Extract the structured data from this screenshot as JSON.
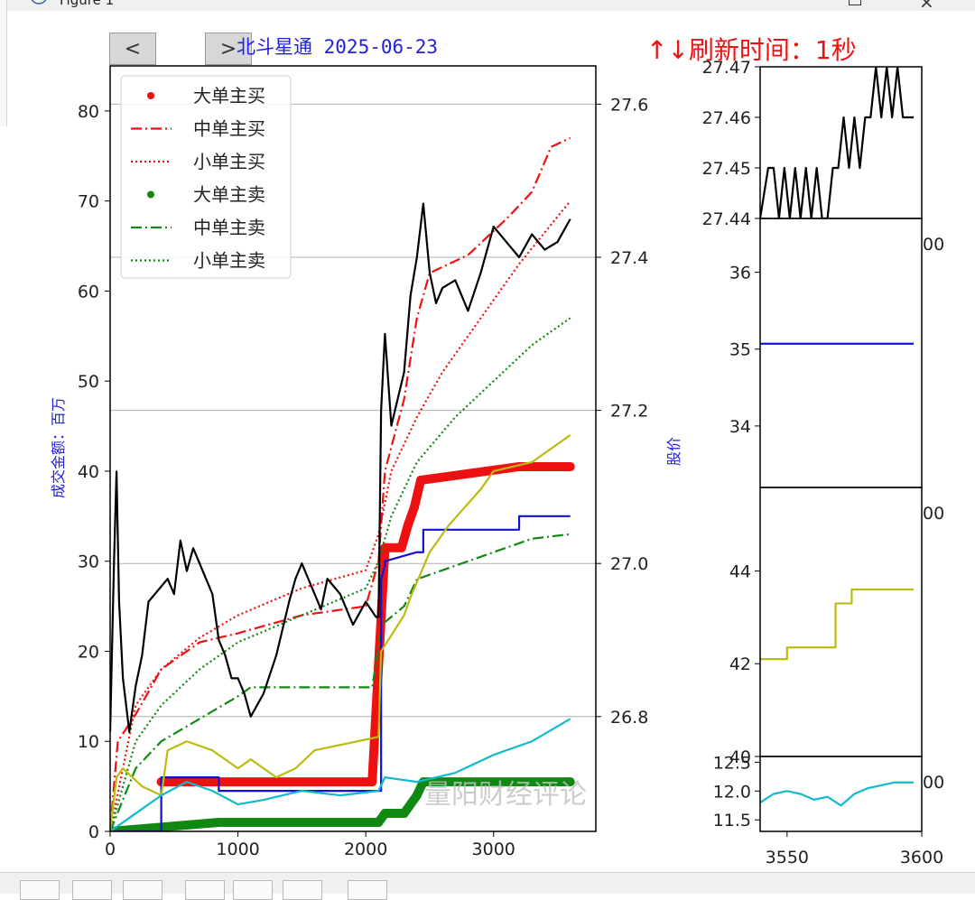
{
  "window": {
    "title": "Figure 1"
  },
  "nav": {
    "prev_label": "<",
    "next_label": ">"
  },
  "header": {
    "title": "北斗星通 2025-06-23",
    "refresh": "↑↓刷新时间：1秒"
  },
  "watermark": "量阳财经评论",
  "colors": {
    "buy": "#ee1111",
    "sell": "#118811",
    "price": "#000000",
    "blue": "#1111dd",
    "olive": "#bbbb11",
    "cyan": "#11bbcc",
    "title": "#2020e0"
  },
  "chart_data": [
    {
      "type": "line",
      "title": "北斗星通 2025-06-23",
      "xlabel": "",
      "ylabel": "成交金额：百万",
      "y2label": "股价",
      "xlim": [
        0,
        3800
      ],
      "ylim": [
        0,
        85
      ],
      "y2lim": [
        26.65,
        27.65
      ],
      "xticks": [
        0,
        1000,
        2000,
        3000
      ],
      "yticks": [
        0,
        10,
        20,
        30,
        40,
        50,
        60,
        70,
        80
      ],
      "y2ticks": [
        26.8,
        27.0,
        27.2,
        27.4,
        27.6
      ],
      "y2ticklabels": [
        "26.8",
        "27.0",
        "27.2",
        "27.4",
        "27.6"
      ],
      "grid": "horizontal on right axis",
      "legend_position": "upper-left",
      "series": [
        {
          "name": "大单主买",
          "style": "dots",
          "color": "#ee1111",
          "x": [
            400,
            1000,
            2050,
            2150,
            2280,
            2330,
            2380,
            2430,
            3200,
            3600
          ],
          "y": [
            5.5,
            5.5,
            5.5,
            31.5,
            31.5,
            34,
            36,
            39,
            40.5,
            40.5
          ]
        },
        {
          "name": "中单主买",
          "style": "dashdot",
          "color": "#ee1111",
          "x": [
            0,
            60,
            200,
            400,
            700,
            1000,
            1500,
            2000,
            2100,
            2150,
            2300,
            2400,
            2500,
            2800,
            3100,
            3300,
            3450,
            3600
          ],
          "y": [
            0,
            10,
            13,
            18,
            21,
            22,
            24,
            25,
            30,
            40,
            48,
            57,
            62,
            64,
            68,
            71,
            76,
            77
          ]
        },
        {
          "name": "小单主买",
          "style": "dotted",
          "color": "#ee1111",
          "x": [
            0,
            200,
            400,
            700,
            1000,
            1500,
            2000,
            2100,
            2200,
            2400,
            2600,
            2900,
            3200,
            3600
          ],
          "y": [
            0,
            14,
            18,
            21.5,
            24,
            27,
            29,
            33,
            40,
            46,
            51,
            57,
            63,
            70
          ]
        },
        {
          "name": "大单主卖",
          "style": "dots",
          "color": "#118811",
          "x": [
            0,
            850,
            2100,
            2150,
            2300,
            2400,
            2450,
            3600
          ],
          "y": [
            0,
            1,
            1,
            2,
            2,
            4,
            5.5,
            5.5
          ]
        },
        {
          "name": "中单主卖",
          "style": "dashdot",
          "color": "#118811",
          "x": [
            0,
            200,
            400,
            700,
            1000,
            1100,
            1600,
            2050,
            2130,
            2300,
            2400,
            2600,
            3000,
            3300,
            3600
          ],
          "y": [
            0,
            7,
            10,
            12.5,
            15,
            16,
            16,
            16,
            23,
            25,
            28,
            29,
            31,
            32.5,
            33
          ]
        },
        {
          "name": "小单主卖",
          "style": "dotted",
          "color": "#118811",
          "x": [
            0,
            200,
            400,
            700,
            1000,
            1500,
            2000,
            2100,
            2200,
            2400,
            2700,
            3000,
            3300,
            3600
          ],
          "y": [
            0,
            10,
            14,
            18,
            21,
            24,
            27,
            30,
            35,
            41,
            46,
            50,
            54,
            57
          ]
        },
        {
          "name": "",
          "style": "step",
          "color": "#1111dd",
          "x": [
            0,
            400,
            400,
            850,
            850,
            2120,
            2120,
            2150,
            2150,
            2400,
            2450,
            2450,
            3200,
            3200,
            3600
          ],
          "y": [
            0,
            0,
            6,
            6,
            4.5,
            4.5,
            28,
            29.5,
            30,
            31,
            31,
            33.5,
            33.5,
            35,
            35
          ]
        },
        {
          "name": "",
          "style": "line",
          "color": "#bbbb11",
          "x": [
            0,
            50,
            100,
            250,
            400,
            450,
            600,
            800,
            1000,
            1100,
            1300,
            1450,
            1600,
            2100,
            2120,
            2300,
            2350,
            2500,
            2650,
            2900,
            3000,
            3300,
            3600
          ],
          "y": [
            0,
            6,
            7,
            5,
            4,
            9,
            10,
            9,
            7,
            8,
            6,
            7,
            9,
            10.5,
            20,
            24,
            26,
            31,
            34,
            38,
            40,
            41,
            44
          ]
        },
        {
          "name": "",
          "style": "line",
          "color": "#11bbcc",
          "x": [
            0,
            200,
            400,
            600,
            800,
            1000,
            1200,
            1500,
            1800,
            2100,
            2150,
            2400,
            2700,
            3000,
            3300,
            3600
          ],
          "y": [
            0,
            2,
            4,
            5.5,
            4.5,
            3,
            3.5,
            4.5,
            4,
            4.5,
            6,
            5.5,
            6.5,
            8.5,
            10,
            12.5
          ]
        },
        {
          "name": "",
          "style": "line",
          "axis": "y2",
          "color": "#000000",
          "x": [
            0,
            30,
            50,
            70,
            100,
            150,
            200,
            250,
            300,
            400,
            450,
            500,
            550,
            600,
            650,
            700,
            800,
            850,
            900,
            950,
            1000,
            1050,
            1100,
            1200,
            1300,
            1400,
            1450,
            1500,
            1600,
            1650,
            1700,
            1800,
            1900,
            2000,
            2080,
            2100,
            2120,
            2150,
            2200,
            2300,
            2350,
            2400,
            2450,
            2500,
            2550,
            2600,
            2700,
            2800,
            2900,
            3000,
            3100,
            3200,
            3300,
            3400,
            3500,
            3600
          ],
          "y": [
            26.78,
            27.0,
            27.12,
            26.95,
            26.85,
            26.78,
            26.84,
            26.88,
            26.95,
            26.97,
            26.98,
            26.96,
            27.03,
            26.99,
            27.02,
            27.0,
            26.96,
            26.9,
            26.88,
            26.85,
            26.85,
            26.83,
            26.8,
            26.83,
            26.88,
            26.95,
            26.98,
            27.0,
            26.96,
            26.94,
            26.98,
            26.96,
            26.92,
            26.95,
            26.93,
            26.93,
            27.2,
            27.3,
            27.18,
            27.25,
            27.35,
            27.4,
            27.47,
            27.38,
            27.34,
            27.36,
            27.37,
            27.33,
            27.38,
            27.44,
            27.42,
            27.4,
            27.43,
            27.41,
            27.42,
            27.45
          ]
        }
      ]
    },
    {
      "type": "line",
      "ylim": [
        27.44,
        27.47
      ],
      "yticks": [
        27.44,
        27.45,
        27.46,
        27.47
      ],
      "yticklabels": [
        "27.44",
        "27.45",
        "27.46",
        "27.47"
      ],
      "x": [
        3540,
        3543,
        3545,
        3547,
        3549,
        3551,
        3553,
        3555,
        3557,
        3559,
        3561,
        3563,
        3565,
        3567,
        3569,
        3571,
        3573,
        3575,
        3577,
        3579,
        3581,
        3583,
        3585,
        3587,
        3589,
        3591,
        3593,
        3595,
        3597
      ],
      "y": [
        27.44,
        27.45,
        27.45,
        27.44,
        27.45,
        27.44,
        27.45,
        27.44,
        27.45,
        27.44,
        27.45,
        27.44,
        27.44,
        27.45,
        27.45,
        27.46,
        27.45,
        27.46,
        27.45,
        27.46,
        27.46,
        27.47,
        27.46,
        27.47,
        27.46,
        27.47,
        27.46,
        27.46,
        27.46
      ]
    },
    {
      "type": "line",
      "ylim": [
        33.2,
        36.7
      ],
      "yticks": [
        34,
        35,
        36
      ],
      "x": [
        3540,
        3597
      ],
      "y": [
        35.07,
        35.07
      ]
    },
    {
      "type": "line",
      "ylim": [
        40,
        45.8
      ],
      "yticks": [
        40,
        42,
        44
      ],
      "x": [
        3540,
        3550,
        3550,
        3562,
        3562,
        3568,
        3568,
        3574,
        3574,
        3597
      ],
      "y": [
        42.1,
        42.1,
        42.35,
        42.35,
        42.35,
        42.35,
        43.3,
        43.3,
        43.6,
        43.6
      ]
    },
    {
      "type": "line",
      "ylim": [
        11.3,
        12.6
      ],
      "yticks": [
        11.5,
        12.0,
        12.5
      ],
      "yticklabels": [
        "11.5",
        "12.0",
        "12.5"
      ],
      "xlim": [
        3540,
        3600
      ],
      "xticks": [
        3550,
        3600
      ],
      "x": [
        3540,
        3545,
        3550,
        3555,
        3560,
        3565,
        3570,
        3575,
        3580,
        3585,
        3590,
        3597
      ],
      "y": [
        11.8,
        11.95,
        12.0,
        11.95,
        11.85,
        11.9,
        11.75,
        11.95,
        12.05,
        12.1,
        12.15,
        12.15
      ]
    }
  ],
  "legend": [
    {
      "label": "大单主买"
    },
    {
      "label": "中单主买"
    },
    {
      "label": "小单主买"
    },
    {
      "label": "大单主卖"
    },
    {
      "label": "中单主卖"
    },
    {
      "label": "小单主卖"
    }
  ],
  "axis_labels": {
    "ylabel": "成交金额：百万",
    "y2label": "股价"
  },
  "clipped_ticks": [
    "00",
    "00",
    "00"
  ]
}
